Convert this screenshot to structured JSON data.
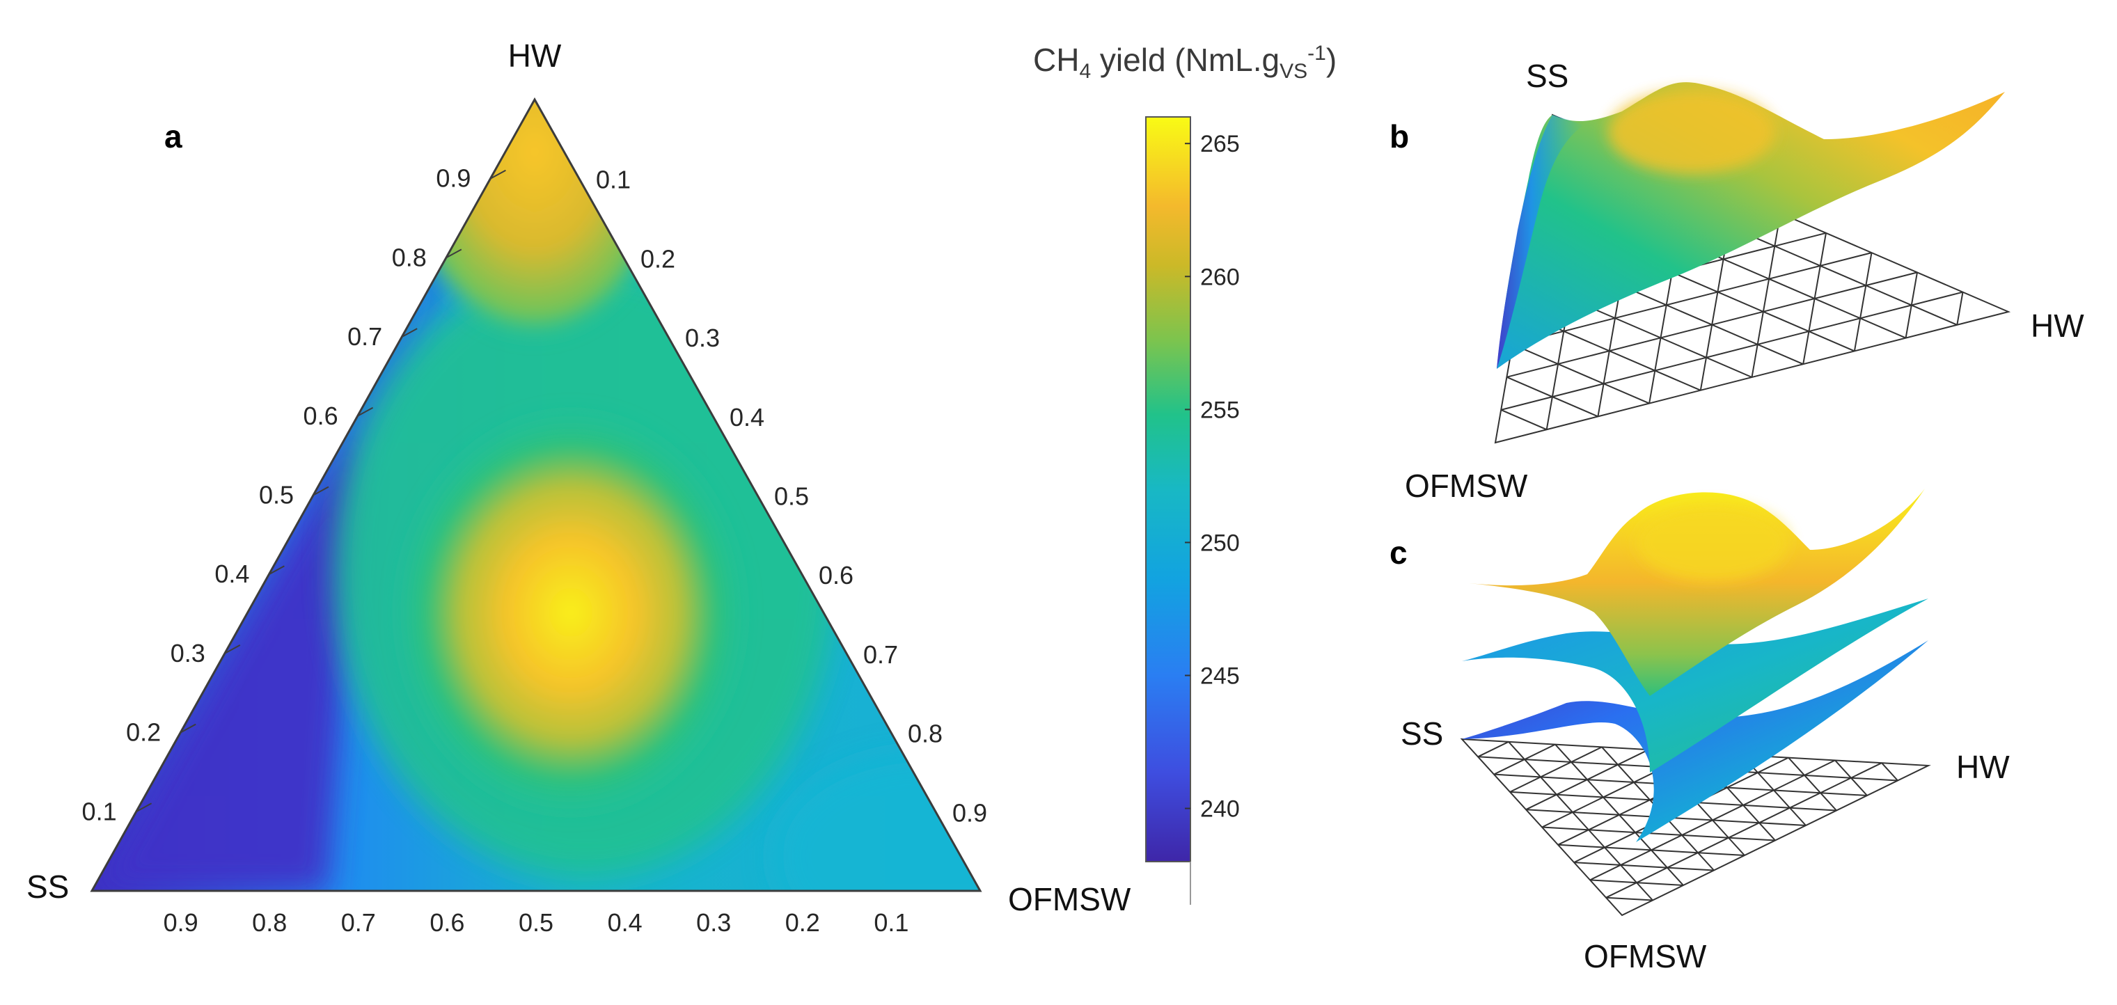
{
  "chart_data": [
    {
      "type": "heatmap",
      "panel_label": "a",
      "subtype": "ternary contour",
      "vertices": {
        "top": "HW",
        "left": "SS",
        "right": "OFMSW"
      },
      "ticks": {
        "left_edge": [
          "0.1",
          "0.2",
          "0.3",
          "0.4",
          "0.5",
          "0.6",
          "0.7",
          "0.8",
          "0.9"
        ],
        "right_edge": [
          "0.1",
          "0.2",
          "0.3",
          "0.4",
          "0.5",
          "0.6",
          "0.7",
          "0.8",
          "0.9"
        ],
        "bottom_edge": [
          "0.9",
          "0.8",
          "0.7",
          "0.6",
          "0.5",
          "0.4",
          "0.3",
          "0.2",
          "0.1"
        ]
      },
      "colorbar": {
        "title_main": "CH",
        "title_sub": "4",
        "title_mid": " yield (NmL.g",
        "title_sub2": "VS",
        "title_sup": "-1",
        "title_end": ")",
        "range": [
          238,
          266
        ],
        "ticks": [
          "240",
          "245",
          "250",
          "255",
          "260",
          "265"
        ],
        "tick_values": [
          240,
          245,
          250,
          255,
          260,
          265
        ],
        "colormap": "parula"
      },
      "surface_samples": [
        {
          "HW": 0.33,
          "OFMSW": 0.33,
          "SS": 0.34,
          "value": 265
        },
        {
          "HW": 0.9,
          "OFMSW": 0.1,
          "SS": 0.0,
          "value": 262
        },
        {
          "HW": 0.6,
          "OFMSW": 0.25,
          "SS": 0.15,
          "value": 258
        },
        {
          "HW": 0.0,
          "OFMSW": 1.0,
          "SS": 0.0,
          "value": 250
        },
        {
          "HW": 0.0,
          "OFMSW": 0.1,
          "SS": 0.9,
          "value": 240
        },
        {
          "HW": 0.3,
          "OFMSW": 0.05,
          "SS": 0.65,
          "value": 240
        },
        {
          "HW": 0.1,
          "OFMSW": 0.5,
          "SS": 0.4,
          "value": 256
        }
      ]
    },
    {
      "type": "heatmap",
      "panel_label": "b",
      "subtype": "3D ternary surface",
      "vertices": {
        "SS": "SS",
        "HW": "HW",
        "OFMSW": "OFMSW"
      }
    },
    {
      "type": "heatmap",
      "panel_label": "c",
      "subtype": "3D ternary surfaces (stacked)",
      "vertices": {
        "SS": "SS",
        "HW": "HW",
        "OFMSW": "OFMSW"
      }
    }
  ]
}
